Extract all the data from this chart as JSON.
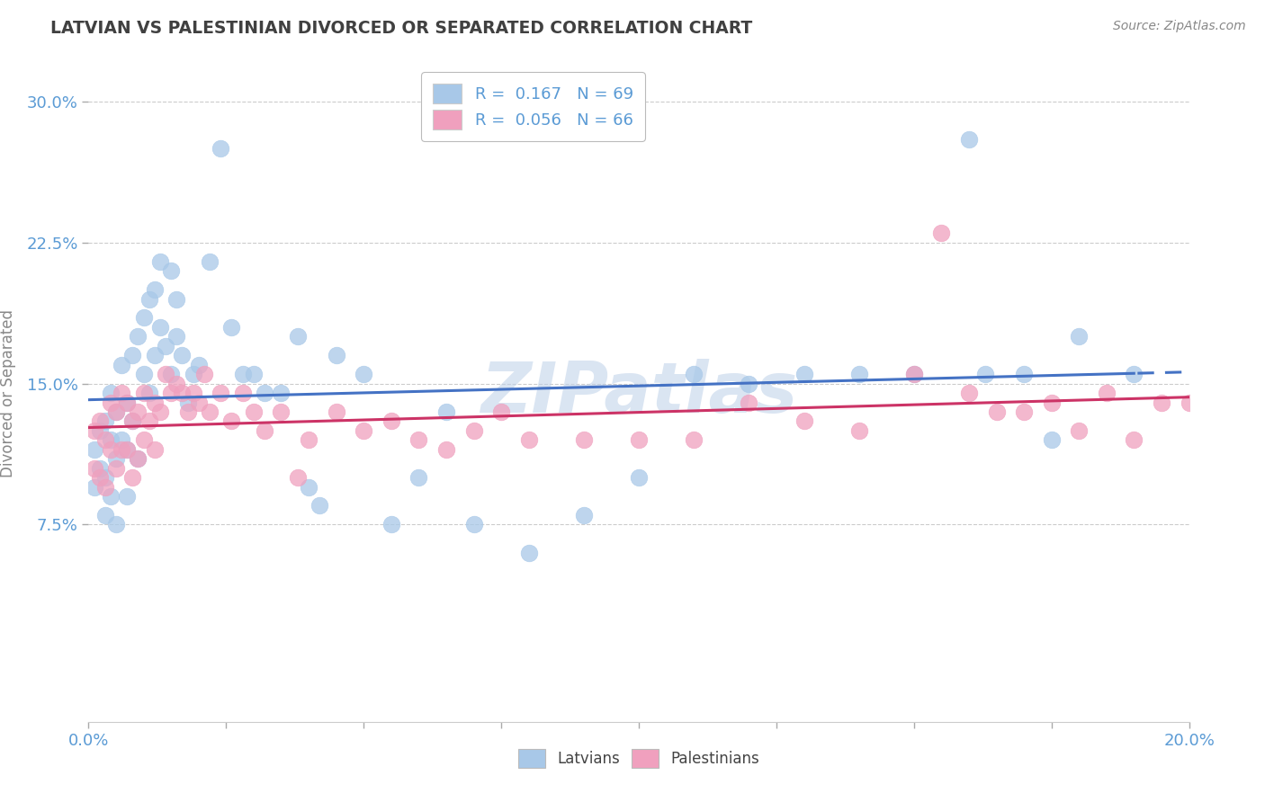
{
  "title": "LATVIAN VS PALESTINIAN DIVORCED OR SEPARATED CORRELATION CHART",
  "source": "Source: ZipAtlas.com",
  "ylabel": "Divorced or Separated",
  "xlim": [
    0.0,
    0.2
  ],
  "ylim": [
    -0.03,
    0.32
  ],
  "yticks": [
    0.075,
    0.15,
    0.225,
    0.3
  ],
  "ytick_labels": [
    "7.5%",
    "15.0%",
    "22.5%",
    "30.0%"
  ],
  "xticks": [
    0.0,
    0.025,
    0.05,
    0.075,
    0.1,
    0.125,
    0.15,
    0.175,
    0.2
  ],
  "xtick_show": [
    "0.0%",
    "",
    "",
    "",
    "",
    "",
    "",
    "",
    "20.0%"
  ],
  "latvian_R": 0.167,
  "latvian_N": 69,
  "palestinian_R": 0.056,
  "palestinian_N": 66,
  "latvian_color": "#A8C8E8",
  "palestinian_color": "#F0A0BE",
  "latvian_line_color": "#4472C4",
  "palestinian_line_color": "#CC3366",
  "background_color": "#FFFFFF",
  "grid_color": "#CCCCCC",
  "title_color": "#404040",
  "axis_label_color": "#5B9BD5",
  "latvian_scatter_x": [
    0.001,
    0.001,
    0.002,
    0.002,
    0.003,
    0.003,
    0.003,
    0.004,
    0.004,
    0.004,
    0.005,
    0.005,
    0.005,
    0.006,
    0.006,
    0.007,
    0.007,
    0.007,
    0.008,
    0.008,
    0.009,
    0.009,
    0.01,
    0.01,
    0.011,
    0.011,
    0.012,
    0.012,
    0.013,
    0.013,
    0.014,
    0.015,
    0.015,
    0.016,
    0.016,
    0.017,
    0.018,
    0.019,
    0.02,
    0.022,
    0.024,
    0.026,
    0.028,
    0.03,
    0.032,
    0.035,
    0.038,
    0.04,
    0.042,
    0.045,
    0.05,
    0.055,
    0.06,
    0.065,
    0.07,
    0.08,
    0.09,
    0.1,
    0.11,
    0.12,
    0.13,
    0.14,
    0.15,
    0.16,
    0.163,
    0.17,
    0.175,
    0.18,
    0.19
  ],
  "latvian_scatter_y": [
    0.115,
    0.095,
    0.125,
    0.105,
    0.13,
    0.1,
    0.08,
    0.12,
    0.145,
    0.09,
    0.135,
    0.11,
    0.075,
    0.16,
    0.12,
    0.14,
    0.115,
    0.09,
    0.165,
    0.13,
    0.175,
    0.11,
    0.155,
    0.185,
    0.195,
    0.145,
    0.2,
    0.165,
    0.215,
    0.18,
    0.17,
    0.21,
    0.155,
    0.195,
    0.175,
    0.165,
    0.14,
    0.155,
    0.16,
    0.215,
    0.275,
    0.18,
    0.155,
    0.155,
    0.145,
    0.145,
    0.175,
    0.095,
    0.085,
    0.165,
    0.155,
    0.075,
    0.1,
    0.135,
    0.075,
    0.06,
    0.08,
    0.1,
    0.155,
    0.15,
    0.155,
    0.155,
    0.155,
    0.28,
    0.155,
    0.155,
    0.12,
    0.175,
    0.155
  ],
  "palestinian_scatter_x": [
    0.001,
    0.001,
    0.002,
    0.002,
    0.003,
    0.003,
    0.004,
    0.004,
    0.005,
    0.005,
    0.006,
    0.006,
    0.007,
    0.007,
    0.008,
    0.008,
    0.009,
    0.009,
    0.01,
    0.01,
    0.011,
    0.012,
    0.012,
    0.013,
    0.014,
    0.015,
    0.016,
    0.017,
    0.018,
    0.019,
    0.02,
    0.021,
    0.022,
    0.024,
    0.026,
    0.028,
    0.03,
    0.032,
    0.035,
    0.038,
    0.04,
    0.045,
    0.05,
    0.055,
    0.06,
    0.065,
    0.07,
    0.075,
    0.08,
    0.09,
    0.1,
    0.11,
    0.12,
    0.13,
    0.14,
    0.15,
    0.155,
    0.16,
    0.165,
    0.17,
    0.175,
    0.18,
    0.185,
    0.19,
    0.195,
    0.2
  ],
  "palestinian_scatter_y": [
    0.125,
    0.105,
    0.13,
    0.1,
    0.12,
    0.095,
    0.14,
    0.115,
    0.135,
    0.105,
    0.145,
    0.115,
    0.14,
    0.115,
    0.13,
    0.1,
    0.135,
    0.11,
    0.145,
    0.12,
    0.13,
    0.14,
    0.115,
    0.135,
    0.155,
    0.145,
    0.15,
    0.145,
    0.135,
    0.145,
    0.14,
    0.155,
    0.135,
    0.145,
    0.13,
    0.145,
    0.135,
    0.125,
    0.135,
    0.1,
    0.12,
    0.135,
    0.125,
    0.13,
    0.12,
    0.115,
    0.125,
    0.135,
    0.12,
    0.12,
    0.12,
    0.12,
    0.14,
    0.13,
    0.125,
    0.155,
    0.23,
    0.145,
    0.135,
    0.135,
    0.14,
    0.125,
    0.145,
    0.12,
    0.14,
    0.14
  ]
}
